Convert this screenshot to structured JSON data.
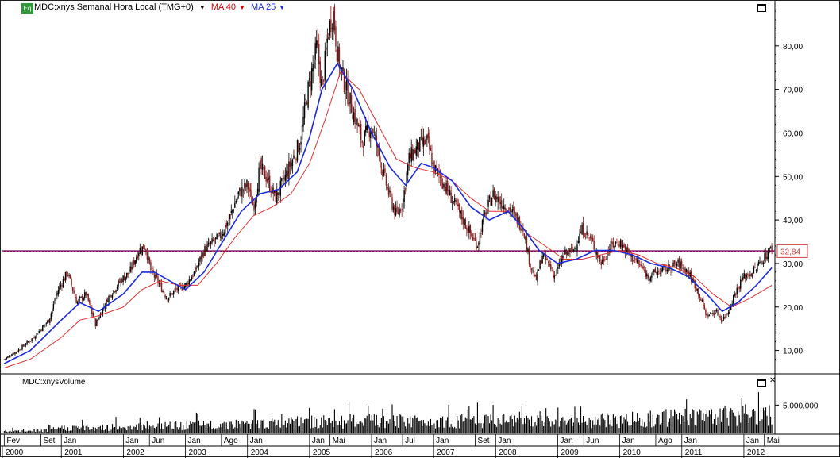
{
  "header": {
    "eq_badge": "Eq",
    "symbol_label": "MDC:xnys Semanal Hora Local (TMG+0)",
    "ma40_label": "MA 40",
    "ma25_label": "MA 25"
  },
  "volume_panel": {
    "label": "MDC:xnysVolume",
    "axis_label": "5.000.000"
  },
  "price_marker": {
    "label": "32,84",
    "value": 32.84
  },
  "colors": {
    "ma40": "#e03030",
    "ma25": "#1a2ae0",
    "hline": "#7a0a5a",
    "up_candle": "#000000",
    "down_candle": "#8b1a1a",
    "volume": "#000000"
  },
  "chart_data": {
    "type": "candlestick",
    "title": "MDC:xnys Semanal Hora Local (TMG+0)",
    "ylim": [
      5,
      90
    ],
    "y_ticks": [
      "10,00",
      "20,00",
      "30,00",
      "40,00",
      "50,00",
      "60,00",
      "70,00",
      "80,00"
    ],
    "y_tick_values": [
      10,
      20,
      30,
      40,
      50,
      60,
      70,
      80
    ],
    "x_range": [
      2000.05,
      2012.5
    ],
    "month_ticks": [
      {
        "label": "Fev",
        "t": 2000.08
      },
      {
        "label": "Set",
        "t": 2000.67
      },
      {
        "label": "Jan",
        "t": 2001.0
      },
      {
        "label": "Jan",
        "t": 2002.0
      },
      {
        "label": "Jun",
        "t": 2002.42
      },
      {
        "label": "Jan",
        "t": 2003.0
      },
      {
        "label": "Ago",
        "t": 2003.58
      },
      {
        "label": "Jan",
        "t": 2004.0
      },
      {
        "label": "Jan",
        "t": 2005.0
      },
      {
        "label": "Mai",
        "t": 2005.33
      },
      {
        "label": "Jan",
        "t": 2006.0
      },
      {
        "label": "Jul",
        "t": 2006.5
      },
      {
        "label": "Jan",
        "t": 2007.0
      },
      {
        "label": "Set",
        "t": 2007.67
      },
      {
        "label": "Jan",
        "t": 2008.0
      },
      {
        "label": "Jan",
        "t": 2009.0
      },
      {
        "label": "Jun",
        "t": 2009.42
      },
      {
        "label": "Jan",
        "t": 2010.0
      },
      {
        "label": "Ago",
        "t": 2010.58
      },
      {
        "label": "Jan",
        "t": 2011.0
      },
      {
        "label": "Jan",
        "t": 2012.0
      },
      {
        "label": "Mai",
        "t": 2012.33
      }
    ],
    "year_labels": [
      "2000",
      "2001",
      "2002",
      "2003",
      "2004",
      "2005",
      "2006",
      "2007",
      "2008",
      "2009",
      "2010",
      "2011",
      "2012"
    ],
    "close_series": {
      "name": "MDC:xnys",
      "points": [
        [
          2000.08,
          8
        ],
        [
          2000.3,
          10
        ],
        [
          2000.55,
          13
        ],
        [
          2000.8,
          17
        ],
        [
          2000.95,
          24
        ],
        [
          2001.1,
          28
        ],
        [
          2001.25,
          21
        ],
        [
          2001.4,
          23
        ],
        [
          2001.55,
          16
        ],
        [
          2001.75,
          22
        ],
        [
          2001.95,
          26
        ],
        [
          2002.1,
          28
        ],
        [
          2002.25,
          33
        ],
        [
          2002.35,
          34
        ],
        [
          2002.45,
          28
        ],
        [
          2002.55,
          26
        ],
        [
          2002.7,
          22
        ],
        [
          2002.85,
          24
        ],
        [
          2003.0,
          25
        ],
        [
          2003.15,
          28
        ],
        [
          2003.3,
          33
        ],
        [
          2003.45,
          35
        ],
        [
          2003.55,
          36
        ],
        [
          2003.7,
          40
        ],
        [
          2003.85,
          46
        ],
        [
          2004.0,
          48
        ],
        [
          2004.1,
          43
        ],
        [
          2004.2,
          52
        ],
        [
          2004.3,
          50
        ],
        [
          2004.45,
          45
        ],
        [
          2004.55,
          48
        ],
        [
          2004.7,
          53
        ],
        [
          2004.85,
          58
        ],
        [
          2004.95,
          68
        ],
        [
          2005.05,
          75
        ],
        [
          2005.12,
          80
        ],
        [
          2005.2,
          70
        ],
        [
          2005.3,
          83
        ],
        [
          2005.38,
          88
        ],
        [
          2005.45,
          78
        ],
        [
          2005.55,
          72
        ],
        [
          2005.7,
          65
        ],
        [
          2005.85,
          58
        ],
        [
          2006.0,
          62
        ],
        [
          2006.1,
          56
        ],
        [
          2006.2,
          50
        ],
        [
          2006.3,
          45
        ],
        [
          2006.4,
          41
        ],
        [
          2006.5,
          44
        ],
        [
          2006.6,
          54
        ],
        [
          2006.75,
          57
        ],
        [
          2006.9,
          58
        ],
        [
          2007.0,
          52
        ],
        [
          2007.1,
          50
        ],
        [
          2007.25,
          46
        ],
        [
          2007.4,
          42
        ],
        [
          2007.55,
          38
        ],
        [
          2007.7,
          34
        ],
        [
          2007.8,
          40
        ],
        [
          2007.95,
          46
        ],
        [
          2008.1,
          44
        ],
        [
          2008.25,
          42
        ],
        [
          2008.35,
          40
        ],
        [
          2008.45,
          38
        ],
        [
          2008.55,
          30
        ],
        [
          2008.65,
          26
        ],
        [
          2008.75,
          32
        ],
        [
          2008.85,
          30
        ],
        [
          2008.95,
          27
        ],
        [
          2009.1,
          32
        ],
        [
          2009.25,
          33
        ],
        [
          2009.4,
          38
        ],
        [
          2009.55,
          35
        ],
        [
          2009.7,
          30
        ],
        [
          2009.85,
          34
        ],
        [
          2010.0,
          35
        ],
        [
          2010.15,
          32
        ],
        [
          2010.3,
          30
        ],
        [
          2010.45,
          27
        ],
        [
          2010.6,
          28
        ],
        [
          2010.8,
          29
        ],
        [
          2010.95,
          30
        ],
        [
          2011.1,
          28
        ],
        [
          2011.25,
          24
        ],
        [
          2011.4,
          18
        ],
        [
          2011.55,
          19
        ],
        [
          2011.65,
          17
        ],
        [
          2011.75,
          19
        ],
        [
          2011.85,
          23
        ],
        [
          2012.0,
          27
        ],
        [
          2012.15,
          28
        ],
        [
          2012.3,
          31
        ],
        [
          2012.45,
          33.5
        ]
      ]
    },
    "ma25": {
      "name": "MA 25",
      "points": [
        [
          2000.08,
          7
        ],
        [
          2000.5,
          10
        ],
        [
          2001.0,
          17
        ],
        [
          2001.3,
          21
        ],
        [
          2001.6,
          19
        ],
        [
          2002.0,
          23
        ],
        [
          2002.3,
          28
        ],
        [
          2002.5,
          28
        ],
        [
          2002.75,
          26
        ],
        [
          2003.0,
          24
        ],
        [
          2003.3,
          28
        ],
        [
          2003.6,
          35
        ],
        [
          2003.9,
          42
        ],
        [
          2004.2,
          46
        ],
        [
          2004.5,
          47
        ],
        [
          2004.8,
          51
        ],
        [
          2005.0,
          59
        ],
        [
          2005.2,
          70
        ],
        [
          2005.45,
          76
        ],
        [
          2005.7,
          70
        ],
        [
          2006.0,
          60
        ],
        [
          2006.3,
          52
        ],
        [
          2006.55,
          48
        ],
        [
          2006.8,
          53
        ],
        [
          2007.0,
          52
        ],
        [
          2007.3,
          49
        ],
        [
          2007.6,
          43
        ],
        [
          2007.9,
          40
        ],
        [
          2008.2,
          42
        ],
        [
          2008.45,
          38
        ],
        [
          2008.7,
          33
        ],
        [
          2009.0,
          30
        ],
        [
          2009.3,
          31
        ],
        [
          2009.6,
          33
        ],
        [
          2009.9,
          33
        ],
        [
          2010.2,
          32
        ],
        [
          2010.5,
          30
        ],
        [
          2010.8,
          29
        ],
        [
          2011.1,
          27
        ],
        [
          2011.4,
          23
        ],
        [
          2011.65,
          19
        ],
        [
          2011.9,
          21
        ],
        [
          2012.2,
          25
        ],
        [
          2012.45,
          29
        ]
      ]
    },
    "ma40": {
      "name": "MA 40",
      "points": [
        [
          2000.08,
          6
        ],
        [
          2000.5,
          8
        ],
        [
          2001.0,
          13
        ],
        [
          2001.3,
          17
        ],
        [
          2001.6,
          18
        ],
        [
          2002.0,
          20
        ],
        [
          2002.3,
          24
        ],
        [
          2002.6,
          26
        ],
        [
          2002.9,
          25
        ],
        [
          2003.2,
          25
        ],
        [
          2003.5,
          30
        ],
        [
          2003.8,
          36
        ],
        [
          2004.1,
          41
        ],
        [
          2004.4,
          43
        ],
        [
          2004.7,
          46
        ],
        [
          2005.0,
          53
        ],
        [
          2005.25,
          63
        ],
        [
          2005.5,
          74
        ],
        [
          2005.8,
          70
        ],
        [
          2006.1,
          62
        ],
        [
          2006.4,
          54
        ],
        [
          2006.7,
          52
        ],
        [
          2007.0,
          51
        ],
        [
          2007.3,
          49
        ],
        [
          2007.6,
          45
        ],
        [
          2007.9,
          42
        ],
        [
          2008.2,
          42
        ],
        [
          2008.5,
          37
        ],
        [
          2008.8,
          34
        ],
        [
          2009.1,
          31
        ],
        [
          2009.4,
          31
        ],
        [
          2009.7,
          32
        ],
        [
          2010.0,
          33
        ],
        [
          2010.3,
          32
        ],
        [
          2010.6,
          30
        ],
        [
          2010.9,
          29
        ],
        [
          2011.2,
          27
        ],
        [
          2011.5,
          23
        ],
        [
          2011.8,
          20
        ],
        [
          2012.1,
          22
        ],
        [
          2012.45,
          25
        ]
      ]
    },
    "horizontal_line": 32.84,
    "volume": {
      "name": "MDC:xnysVolume",
      "ylim": [
        0,
        8000000
      ],
      "tick_value": 5000000,
      "envelope": [
        [
          2000.08,
          600000
        ],
        [
          2000.8,
          900000
        ],
        [
          2001.0,
          1500000
        ],
        [
          2002.0,
          1800000
        ],
        [
          2003.0,
          2200000
        ],
        [
          2004.0,
          2600000
        ],
        [
          2005.0,
          3200000
        ],
        [
          2006.0,
          3500000
        ],
        [
          2007.0,
          3400000
        ],
        [
          2008.0,
          3600000
        ],
        [
          2009.0,
          3000000
        ],
        [
          2010.0,
          3800000
        ],
        [
          2011.0,
          4500000
        ],
        [
          2011.5,
          5000000
        ],
        [
          2012.0,
          5200000
        ],
        [
          2012.45,
          5000000
        ]
      ]
    }
  }
}
